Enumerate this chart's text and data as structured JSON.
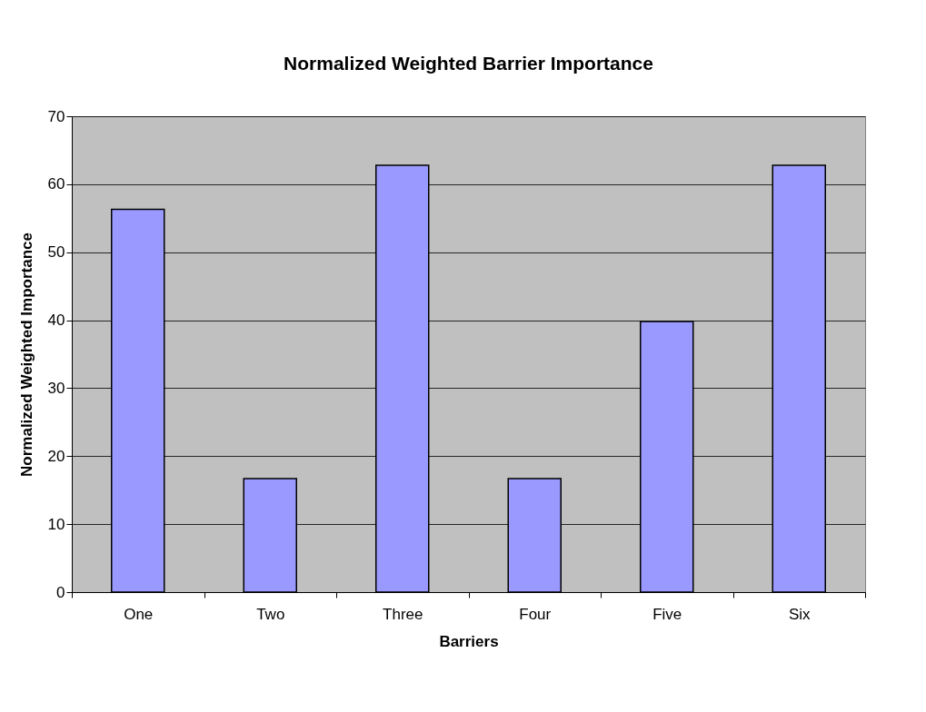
{
  "chart_data": {
    "type": "bar",
    "title": "Normalized Weighted Barrier Importance",
    "xlabel": "Barriers",
    "ylabel": "Normalized Weighted Importance",
    "categories": [
      "One",
      "Two",
      "Three",
      "Four",
      "Five",
      "Six"
    ],
    "values": [
      56.3,
      16.7,
      62.8,
      16.7,
      39.8,
      62.8
    ],
    "color": "#9999ff",
    "ylim": [
      0,
      70
    ],
    "yticks": [
      0,
      10,
      20,
      30,
      40,
      50,
      60,
      70
    ],
    "grid": "y"
  }
}
